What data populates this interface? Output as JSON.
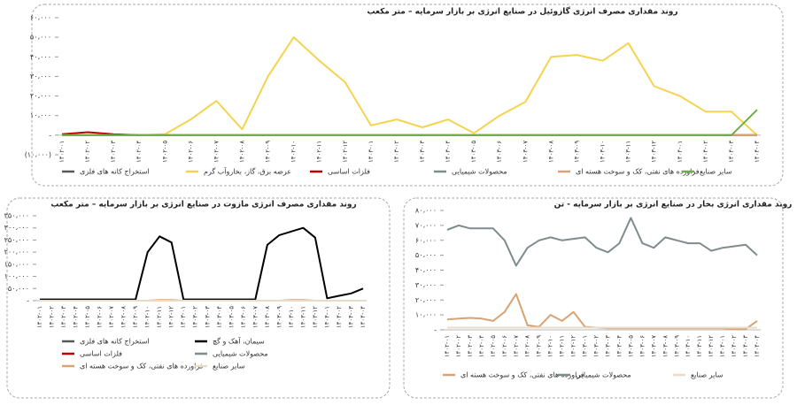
{
  "chart_data": [
    {
      "type": "line",
      "title": "روند مقداری مصرف انرژی گازوئیل در صنایع انرژی بر بازار سرمایه – متر مکعب",
      "categories": [
        "۱۴۰۲-۰۱",
        "۱۴۰۲-۰۲",
        "۱۴۰۲-۰۳",
        "۱۴۰۲-۰۴",
        "۱۴۰۲-۰۵",
        "۱۴۰۲-۰۶",
        "۱۴۰۲-۰۷",
        "۱۴۰۲-۰۸",
        "۱۴۰۲-۰۹",
        "۱۴۰۲-۱۰",
        "۱۴۰۲-۱۱",
        "۱۴۰۲-۱۲",
        "۱۴۰۳-۰۱",
        "۱۴۰۳-۰۲",
        "۱۴۰۳-۰۳",
        "۱۴۰۳-۰۴",
        "۱۴۰۳-۰۵",
        "۱۴۰۳-۰۶",
        "۱۴۰۳-۰۷",
        "۱۴۰۳-۰۸",
        "۱۴۰۳-۰۹",
        "۱۴۰۳-۱۰",
        "۱۴۰۳-۱۱",
        "۱۴۰۳-۱۲",
        "۱۴۰۴-۰۱",
        "۱۴۰۴-۰۲",
        "۱۴۰۴-۰۳",
        "۱۴۰۴-۰۴"
      ],
      "ylim": [
        -10000,
        60000
      ],
      "yticks": [
        {
          "value": -10000,
          "label": "(۱۰،۰۰۰)"
        },
        {
          "value": 0,
          "label": "-"
        },
        {
          "value": 10000,
          "label": "۱۰،۰۰۰"
        },
        {
          "value": 20000,
          "label": "۲۰،۰۰۰"
        },
        {
          "value": 30000,
          "label": "۳۰،۰۰۰"
        },
        {
          "value": 40000,
          "label": "۴۰،۰۰۰"
        },
        {
          "value": 50000,
          "label": "۵۰،۰۰۰"
        },
        {
          "value": 60000,
          "label": "۶۰،۰۰۰"
        }
      ],
      "series": [
        {
          "name": "استخراج کانه های فلزی",
          "color": "#595959",
          "values": [
            0,
            0,
            0,
            0,
            0,
            0,
            0,
            0,
            0,
            0,
            0,
            0,
            0,
            0,
            0,
            0,
            0,
            0,
            0,
            0,
            0,
            0,
            0,
            0,
            0,
            0,
            0,
            0
          ]
        },
        {
          "name": "عرضه برق، گاز، بخاروآب گرم",
          "color": "#f5d34f",
          "values": [
            0,
            0,
            0,
            0,
            500,
            8000,
            17500,
            3000,
            30000,
            50000,
            38000,
            27000,
            5000,
            8000,
            4000,
            8000,
            1000,
            10000,
            17000,
            40000,
            41000,
            38000,
            47000,
            25000,
            20000,
            12000,
            12000,
            0
          ]
        },
        {
          "name": "فلزات اساسی",
          "color": "#c00000",
          "values": [
            500,
            1500,
            500,
            0,
            0,
            0,
            0,
            0,
            0,
            0,
            0,
            0,
            0,
            0,
            0,
            0,
            0,
            0,
            0,
            0,
            0,
            0,
            0,
            0,
            0,
            0,
            0,
            0
          ]
        },
        {
          "name": "محصولات شیمیایی",
          "color": "#7f8c8d",
          "values": [
            0,
            0,
            0,
            0,
            0,
            0,
            0,
            0,
            0,
            0,
            0,
            0,
            0,
            0,
            0,
            0,
            0,
            0,
            0,
            0,
            0,
            0,
            0,
            0,
            0,
            0,
            0,
            0
          ]
        },
        {
          "name": "فراورده های نفتی، کک و سوخت هسته ای",
          "color": "#d9a273",
          "values": [
            0,
            0,
            0,
            0,
            0,
            0,
            0,
            0,
            0,
            0,
            0,
            0,
            0,
            0,
            0,
            0,
            0,
            0,
            0,
            0,
            0,
            0,
            0,
            0,
            0,
            0,
            0,
            0
          ]
        },
        {
          "name": "سایر صنایع",
          "color": "#70ad47",
          "values": [
            0,
            0,
            0,
            0,
            0,
            0,
            0,
            0,
            0,
            0,
            0,
            0,
            0,
            0,
            0,
            0,
            0,
            0,
            0,
            0,
            0,
            0,
            0,
            0,
            0,
            0,
            0,
            13000
          ]
        }
      ]
    },
    {
      "type": "line",
      "title": "روند مقداری مصرف انرژی مازوت  در صنایع انرژی بر بازار سرمایه – متر مکعب",
      "categories": [
        "۱۴۰۲-۰۱",
        "۱۴۰۲-۰۲",
        "۱۴۰۲-۰۳",
        "۱۴۰۲-۰۴",
        "۱۴۰۲-۰۵",
        "۱۴۰۲-۰۶",
        "۱۴۰۲-۰۷",
        "۱۴۰۲-۰۸",
        "۱۴۰۲-۰۹",
        "۱۴۰۲-۱۰",
        "۱۴۰۲-۱۱",
        "۱۴۰۲-۱۲",
        "۱۴۰۳-۰۱",
        "۱۴۰۳-۰۲",
        "۱۴۰۳-۰۳",
        "۱۴۰۳-۰۴",
        "۱۴۰۳-۰۵",
        "۱۴۰۳-۰۶",
        "۱۴۰۳-۰۷",
        "۱۴۰۳-۰۸",
        "۱۴۰۳-۰۹",
        "۱۴۰۳-۱۰",
        "۱۴۰۳-۱۱",
        "۱۴۰۳-۱۲",
        "۱۴۰۴-۰۱",
        "۱۴۰۴-۰۲",
        "۱۴۰۴-۰۳",
        "۱۴۰۴-۰۴"
      ],
      "ylim": [
        0,
        350000
      ],
      "yticks": [
        {
          "value": 0,
          "label": "-"
        },
        {
          "value": 50000,
          "label": "۵۰،۰۰۰"
        },
        {
          "value": 100000,
          "label": "۱۰۰،۰۰۰"
        },
        {
          "value": 150000,
          "label": "۱۵۰،۰۰۰"
        },
        {
          "value": 200000,
          "label": "۲۰۰،۰۰۰"
        },
        {
          "value": 250000,
          "label": "۲۵۰،۰۰۰"
        },
        {
          "value": 300000,
          "label": "۳۰۰،۰۰۰"
        },
        {
          "value": 350000,
          "label": "۳۵۰،۰۰۰"
        }
      ],
      "series": [
        {
          "name": "استخراج کانه های فلزی",
          "color": "#595959",
          "values": [
            0,
            0,
            0,
            0,
            0,
            0,
            0,
            0,
            0,
            0,
            0,
            0,
            0,
            0,
            0,
            0,
            0,
            0,
            0,
            0,
            0,
            0,
            0,
            0,
            0,
            0,
            0,
            0
          ]
        },
        {
          "name": "سیمان، آهک و گچ",
          "color": "#000000",
          "values": [
            5000,
            5000,
            5000,
            5000,
            5000,
            5000,
            5000,
            5000,
            5000,
            200000,
            265000,
            240000,
            5000,
            5000,
            5000,
            5000,
            5000,
            5000,
            5000,
            230000,
            270000,
            285000,
            300000,
            260000,
            10000,
            20000,
            30000,
            50000
          ]
        },
        {
          "name": "فلزات اساسی",
          "color": "#c00000",
          "values": [
            0,
            0,
            0,
            0,
            0,
            0,
            0,
            0,
            0,
            0,
            0,
            0,
            0,
            0,
            0,
            0,
            0,
            0,
            0,
            0,
            0,
            0,
            0,
            0,
            0,
            0,
            0,
            0
          ]
        },
        {
          "name": "محصولات شیمیایی",
          "color": "#7f8c8d",
          "values": [
            0,
            0,
            0,
            0,
            0,
            0,
            0,
            0,
            0,
            0,
            0,
            0,
            0,
            0,
            0,
            0,
            0,
            0,
            0,
            0,
            0,
            0,
            0,
            0,
            0,
            0,
            0,
            0
          ]
        },
        {
          "name": "فراورده های نفتی، کک و سوخت هسته ای",
          "color": "#d9a273",
          "values": [
            0,
            0,
            0,
            0,
            0,
            0,
            0,
            0,
            0,
            0,
            3000,
            3000,
            0,
            0,
            0,
            0,
            0,
            0,
            0,
            0,
            0,
            3000,
            3000,
            0,
            0,
            0,
            0,
            0
          ]
        },
        {
          "name": "سایر صنایع",
          "color": "#e8dcc8",
          "values": [
            0,
            0,
            0,
            0,
            0,
            0,
            0,
            0,
            0,
            0,
            0,
            0,
            0,
            0,
            0,
            0,
            0,
            0,
            0,
            0,
            0,
            0,
            0,
            0,
            0,
            0,
            0,
            0
          ]
        }
      ]
    },
    {
      "type": "line",
      "title": "روند مقداری انرژی بخار در صنایع انرژی بر بازار سرمایه - تن",
      "categories": [
        "۱۴۰۲-۰۱",
        "۱۴۰۲-۰۲",
        "۱۴۰۲-۰۳",
        "۱۴۰۲-۰۴",
        "۱۴۰۲-۰۵",
        "۱۴۰۲-۰۶",
        "۱۴۰۲-۰۷",
        "۱۴۰۲-۰۸",
        "۱۴۰۲-۰۹",
        "۱۴۰۲-۱۰",
        "۱۴۰۲-۱۱",
        "۱۴۰۲-۱۲",
        "۱۴۰۳-۰۱",
        "۱۴۰۳-۰۲",
        "۱۴۰۳-۰۳",
        "۱۴۰۳-۰۴",
        "۱۴۰۳-۰۵",
        "۱۴۰۳-۰۶",
        "۱۴۰۳-۰۷",
        "۱۴۰۳-۰۸",
        "۱۴۰۳-۰۹",
        "۱۴۰۳-۱۰",
        "۱۴۰۳-۱۱",
        "۱۴۰۳-۱۲",
        "۱۴۰۴-۰۱",
        "۱۴۰۴-۰۲",
        "۱۴۰۴-۰۳",
        "۱۴۰۴-۰۴"
      ],
      "ylim": [
        0,
        80000
      ],
      "yticks": [
        {
          "value": 0,
          "label": "-"
        },
        {
          "value": 10000,
          "label": "۱۰،۰۰۰"
        },
        {
          "value": 20000,
          "label": "۲۰،۰۰۰"
        },
        {
          "value": 30000,
          "label": "۳۰،۰۰۰"
        },
        {
          "value": 40000,
          "label": "۴۰،۰۰۰"
        },
        {
          "value": 50000,
          "label": "۵۰،۰۰۰"
        },
        {
          "value": 60000,
          "label": "۶۰،۰۰۰"
        },
        {
          "value": 70000,
          "label": "۷۰،۰۰۰"
        },
        {
          "value": 80000,
          "label": "۸۰،۰۰۰"
        }
      ],
      "series": [
        {
          "name": "فراورده های نفتی، کک و سوخت هسته ای",
          "color": "#d9a273",
          "values": [
            7000,
            7500,
            8000,
            7500,
            6000,
            12000,
            24000,
            3000,
            2000,
            10000,
            6000,
            12000,
            2000,
            1500,
            1000,
            1000,
            1000,
            1000,
            1000,
            1000,
            1000,
            1000,
            1000,
            1000,
            1000,
            500,
            500,
            6000
          ]
        },
        {
          "name": "محصولات شیمیایی",
          "color": "#7f8c8d",
          "values": [
            67000,
            70000,
            68000,
            68000,
            68000,
            60000,
            43000,
            55000,
            60000,
            62000,
            60000,
            61000,
            62000,
            55000,
            52000,
            58000,
            75000,
            58000,
            55000,
            62000,
            60000,
            58000,
            58000,
            53000,
            55000,
            56000,
            57000,
            50000
          ]
        },
        {
          "name": "سایر صنایع",
          "color": "#e8dcc8",
          "values": [
            1500,
            1500,
            1500,
            1500,
            1500,
            1500,
            1500,
            1500,
            1500,
            1500,
            1500,
            1500,
            1500,
            1500,
            1500,
            1500,
            1500,
            1500,
            1500,
            1500,
            1500,
            1500,
            1500,
            1500,
            1500,
            1500,
            1500,
            1500
          ]
        }
      ]
    }
  ]
}
